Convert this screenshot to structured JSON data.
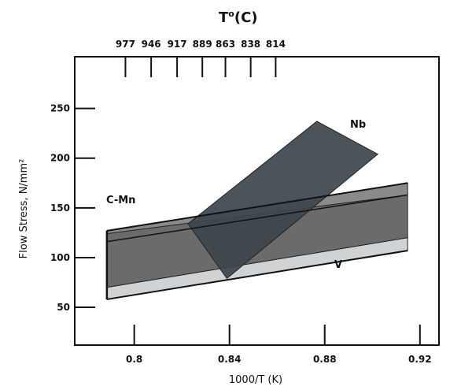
{
  "chart_data": {
    "type": "area",
    "title": "",
    "top_axis": {
      "label": "T(C)",
      "label_main": "T",
      "label_sup": "o",
      "label_unit": "(C)",
      "ticks": [
        {
          "x": 0.7963,
          "label": "977"
        },
        {
          "x": 0.8071,
          "label": "946"
        },
        {
          "x": 0.818,
          "label": "917"
        },
        {
          "x": 0.8286,
          "label": "889"
        },
        {
          "x": 0.8383,
          "label": "863"
        },
        {
          "x": 0.8489,
          "label": "838"
        },
        {
          "x": 0.8594,
          "label": "814"
        }
      ]
    },
    "xlabel": "1000/T (K)",
    "ylabel": "Flow Stress, N/mm²",
    "xlim": [
      0.775,
      0.928
    ],
    "ylim": [
      12,
      302
    ],
    "x_ticks": [
      {
        "value": 0.8,
        "label": "0.8"
      },
      {
        "value": 0.84,
        "label": "0.84"
      },
      {
        "value": 0.88,
        "label": "0.88"
      },
      {
        "value": 0.92,
        "label": "0.92"
      }
    ],
    "y_ticks": [
      {
        "value": 50,
        "label": "50"
      },
      {
        "value": 100,
        "label": "100"
      },
      {
        "value": 150,
        "label": "150"
      },
      {
        "value": 200,
        "label": "200"
      },
      {
        "value": 250,
        "label": "250"
      }
    ],
    "grid": false,
    "series": [
      {
        "name": "C-Mn",
        "color": "#8a8a8a",
        "polygon": [
          [
            0.7885,
            127
          ],
          [
            0.9148,
            175
          ],
          [
            0.9148,
            163
          ],
          [
            0.7885,
            116
          ]
        ]
      },
      {
        "name": "C-Mn",
        "color": "#6b6b6b",
        "polygon": [
          [
            0.7885,
            124
          ],
          [
            0.9148,
            163
          ],
          [
            0.9148,
            120
          ],
          [
            0.7885,
            70
          ]
        ]
      },
      {
        "name": "V",
        "color": "#cfd3d6",
        "polygon": [
          [
            0.7885,
            70
          ],
          [
            0.9148,
            120
          ],
          [
            0.9148,
            107
          ],
          [
            0.7885,
            58
          ]
        ]
      },
      {
        "name": "Nb",
        "color": "#3b454c",
        "polygon": [
          [
            0.8226,
            134
          ],
          [
            0.8767,
            237
          ],
          [
            0.9023,
            204
          ],
          [
            0.8389,
            79
          ]
        ]
      }
    ],
    "labels": {
      "nb": "Nb",
      "cmn": "C-Mn",
      "v": "V"
    }
  }
}
